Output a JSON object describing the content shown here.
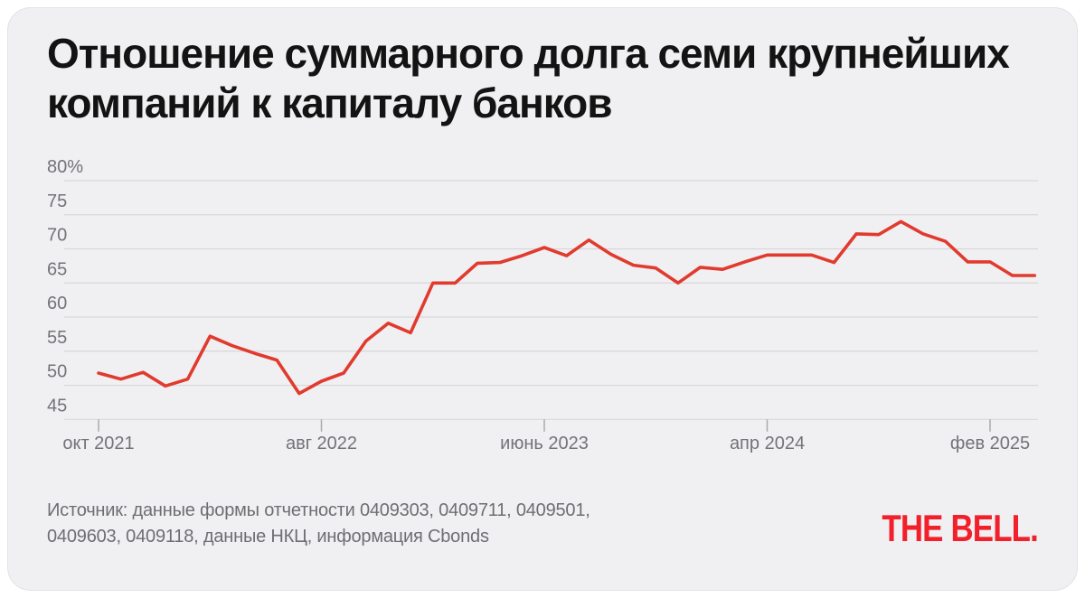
{
  "card": {
    "title": "Отношение суммарного долга семи крупнейших компаний к капиталу банков",
    "source": {
      "lines": [
        "Источник: данные формы отчетности 0409303, 0409711, 0409501,",
        "0409603, 0409118, данные НКЦ, информация Cbonds"
      ]
    },
    "logo_text": "THE BELL."
  },
  "colors": {
    "page": "#ffffff",
    "card_background": "#f0f0f2",
    "card_border": "#e2e2e5",
    "title_text": "#131313",
    "grid": "#d8d8db",
    "tick": "#ababaf",
    "axis_text": "#737378",
    "line": "#e13b2e",
    "source_text": "#6e6e73",
    "logo_red": "#f2202a"
  },
  "chart_data": {
    "type": "line",
    "title": "Отношение суммарного долга семи крупнейших компаний к капиталу банков",
    "unit": "%",
    "ylim": [
      45,
      80
    ],
    "grid": "horizontal",
    "legend": "none",
    "months": [
      "2021-10",
      "2021-11",
      "2021-12",
      "2022-01",
      "2022-02",
      "2022-03",
      "2022-04",
      "2022-05",
      "2022-06",
      "2022-07",
      "2022-08",
      "2022-09",
      "2022-10",
      "2022-11",
      "2022-12",
      "2023-01",
      "2023-02",
      "2023-03",
      "2023-04",
      "2023-05",
      "2023-06",
      "2023-07",
      "2023-08",
      "2023-09",
      "2023-10",
      "2023-11",
      "2023-12",
      "2024-01",
      "2024-02",
      "2024-03",
      "2024-04",
      "2024-05",
      "2024-06",
      "2024-07",
      "2024-08",
      "2024-09",
      "2024-10",
      "2024-11",
      "2024-12",
      "2025-01",
      "2025-02",
      "2025-03",
      "2025-04"
    ],
    "values": [
      51.8,
      50.9,
      51.9,
      49.9,
      50.9,
      57.2,
      55.8,
      54.7,
      53.7,
      48.8,
      50.6,
      51.8,
      56.5,
      59.1,
      57.7,
      65.0,
      65.0,
      67.9,
      68.0,
      69.0,
      70.2,
      69.0,
      71.3,
      69.2,
      67.6,
      67.2,
      65.0,
      67.3,
      67.0,
      68.1,
      69.1,
      69.1,
      69.1,
      68.0,
      72.2,
      72.1,
      74.0,
      72.2,
      71.1,
      68.1,
      68.1,
      66.1,
      66.1
    ],
    "y_ticks": [
      {
        "value": 80,
        "label": "80%"
      },
      {
        "value": 75,
        "label": "75"
      },
      {
        "value": 70,
        "label": "70"
      },
      {
        "value": 65,
        "label": "65"
      },
      {
        "value": 60,
        "label": "60"
      },
      {
        "value": 55,
        "label": "55"
      },
      {
        "value": 50,
        "label": "50"
      },
      {
        "value": 45,
        "label": "45"
      }
    ],
    "x_ticks": [
      {
        "month_index": 0,
        "label": "окт 2021"
      },
      {
        "month_index": 10,
        "label": "авг 2022"
      },
      {
        "month_index": 20,
        "label": "июнь 2023"
      },
      {
        "month_index": 30,
        "label": "апр 2024"
      },
      {
        "month_index": 40,
        "label": "фев 2025"
      }
    ]
  }
}
